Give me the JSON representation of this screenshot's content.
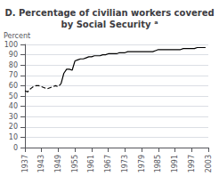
{
  "chart_data": {
    "type": "line",
    "title": "D. Percentage of civilian workers covered\nby Social Security ᵃ",
    "ylabel": "Percent",
    "x": [
      1937,
      1938,
      1939,
      1940,
      1941,
      1942,
      1943,
      1944,
      1945,
      1946,
      1947,
      1948,
      1949,
      1950,
      1951,
      1952,
      1953,
      1954,
      1955,
      1956,
      1957,
      1958,
      1959,
      1960,
      1961,
      1962,
      1963,
      1964,
      1965,
      1966,
      1967,
      1968,
      1969,
      1970,
      1971,
      1972,
      1973,
      1974,
      1975,
      1976,
      1977,
      1978,
      1979,
      1980,
      1981,
      1982,
      1983,
      1984,
      1985,
      1986,
      1987,
      1988,
      1989,
      1990,
      1991,
      1992,
      1993,
      1994,
      1995,
      1996,
      1997,
      1998,
      1999,
      2000,
      2001,
      2002
    ],
    "series": [
      {
        "line_style": "dashed",
        "color": "#000000",
        "values": [
          55,
          54,
          57,
          59,
          60,
          60,
          59,
          58,
          57,
          58,
          59,
          60,
          59,
          62,
          null,
          null,
          null,
          null,
          null,
          null,
          null,
          null,
          null,
          null,
          null,
          null,
          null,
          null,
          null,
          null,
          null,
          null,
          null,
          null,
          null,
          null,
          null,
          null,
          null,
          null,
          null,
          null,
          null,
          null,
          null,
          null,
          null,
          null,
          null,
          null,
          null,
          null,
          null,
          null,
          null,
          null,
          null,
          null,
          null,
          null,
          null,
          null,
          null,
          null,
          null,
          null
        ]
      },
      {
        "line_style": "solid",
        "color": "#000000",
        "values": [
          null,
          null,
          null,
          null,
          null,
          null,
          null,
          null,
          null,
          null,
          null,
          null,
          null,
          62,
          72,
          76,
          76,
          75,
          84,
          85,
          86,
          86,
          87,
          88,
          88,
          89,
          89,
          89,
          90,
          90,
          91,
          91,
          91,
          91,
          92,
          92,
          92,
          93,
          93,
          93,
          93,
          93,
          93,
          93,
          93,
          93,
          93,
          94,
          95,
          95,
          95,
          95,
          95,
          95,
          95,
          95,
          95,
          96,
          96,
          96,
          96,
          96,
          97,
          97,
          97,
          97
        ]
      }
    ],
    "xlim": [
      1937,
      2003
    ],
    "ylim": [
      0,
      100
    ],
    "xticks": [
      1937,
      1943,
      1949,
      1955,
      1961,
      1967,
      1973,
      1979,
      1985,
      1991,
      1997,
      2003
    ],
    "yticks": [
      0,
      10,
      20,
      30,
      40,
      50,
      60,
      70,
      80,
      90,
      100
    ],
    "grid": true
  }
}
